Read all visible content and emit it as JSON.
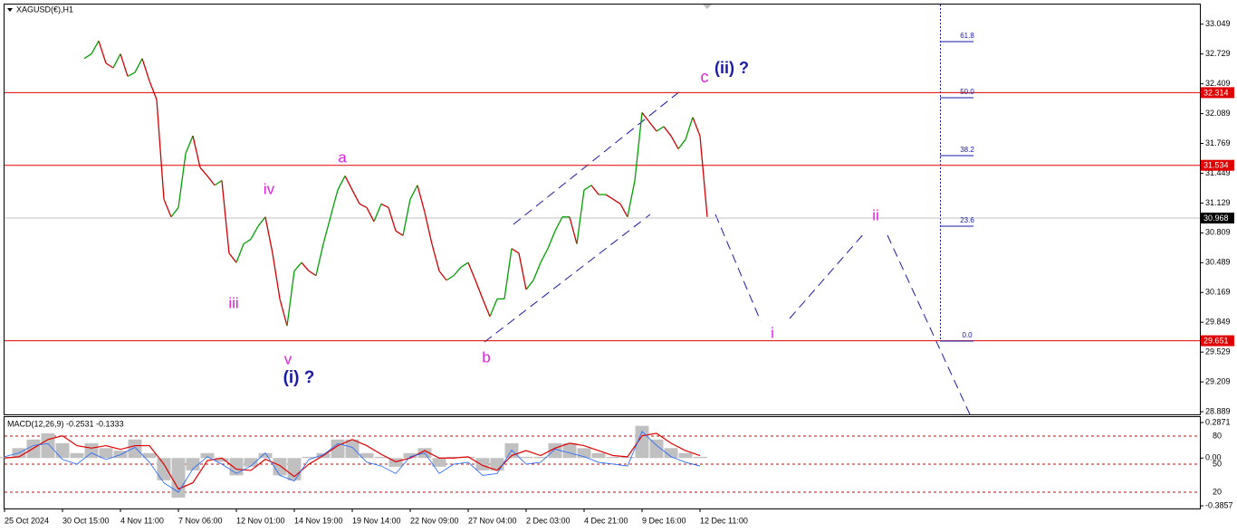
{
  "chart_data": [
    {
      "type": "line",
      "title": "XAGUSD(€),H1",
      "up_color": "#00a000",
      "down_color": "#d00000",
      "categories": [
        "25 Oct 2024",
        null,
        null,
        null,
        null,
        null,
        null,
        null,
        "30 Oct 15:00",
        null,
        null,
        null,
        null,
        null,
        null,
        null,
        "4 Nov 11:00",
        null,
        null,
        null,
        null,
        null,
        null,
        null,
        "7 Nov 06:00",
        null,
        null,
        null,
        null,
        null,
        null,
        null,
        "12 Nov 01:00",
        null,
        null,
        null,
        null,
        null,
        null,
        null,
        "14 Nov 19:00",
        null,
        null,
        null,
        null,
        null,
        null,
        null,
        "19 Nov 14:00",
        null,
        null,
        null,
        null,
        null,
        null,
        null,
        "22 Nov 09:00",
        null,
        null,
        null,
        null,
        null,
        null,
        null,
        "27 Nov 04:00",
        null,
        null,
        null,
        null,
        null,
        null,
        null,
        "2 Dec 03:00",
        null,
        null,
        null,
        null,
        null,
        null,
        null,
        "4 Dec 21:00",
        null,
        null,
        null,
        null,
        null,
        null,
        null,
        "9 Dec 16:00",
        null,
        null,
        null,
        null,
        null,
        null,
        null,
        "12 Dec 11:00",
        null,
        null,
        null,
        null,
        null,
        null,
        null,
        null,
        null,
        null,
        null,
        null,
        null,
        null,
        null,
        null,
        null,
        null,
        null,
        null,
        null,
        null,
        null,
        null,
        null,
        null,
        null,
        null,
        null,
        null,
        null,
        null,
        null,
        null,
        null,
        null,
        null,
        null,
        null,
        null,
        null,
        null,
        null,
        null,
        null,
        null,
        null,
        null,
        null,
        null,
        null,
        null,
        null,
        null,
        null,
        null,
        null,
        null,
        null,
        null,
        null,
        null,
        null,
        null,
        null,
        null,
        null,
        null
      ],
      "values": [
        null,
        null,
        null,
        null,
        null,
        null,
        null,
        null,
        null,
        null,
        null,
        32.68,
        32.73,
        32.87,
        32.63,
        32.58,
        32.73,
        32.49,
        32.53,
        32.68,
        32.44,
        32.24,
        31.17,
        30.98,
        31.08,
        31.66,
        31.85,
        31.51,
        31.42,
        31.32,
        31.37,
        30.59,
        30.49,
        30.69,
        30.74,
        30.88,
        30.98,
        30.59,
        30.1,
        29.81,
        30.4,
        30.49,
        30.4,
        30.35,
        30.69,
        30.98,
        31.27,
        31.42,
        31.27,
        31.12,
        31.08,
        30.93,
        31.12,
        31.08,
        30.83,
        30.78,
        31.17,
        31.32,
        31.03,
        30.69,
        30.4,
        30.3,
        30.35,
        30.44,
        30.49,
        30.3,
        30.1,
        29.91,
        30.1,
        30.1,
        30.64,
        30.59,
        30.2,
        30.3,
        30.49,
        30.64,
        30.83,
        30.98,
        30.98,
        30.69,
        31.27,
        31.32,
        31.22,
        31.22,
        31.17,
        31.12,
        30.98,
        31.37,
        32.1,
        32.0,
        31.9,
        31.95,
        31.85,
        31.71,
        31.81,
        32.05,
        31.85,
        30.98,
        null,
        null,
        null,
        null,
        null,
        null,
        null,
        null,
        null,
        null,
        null,
        null,
        null,
        null,
        null,
        null,
        null,
        null,
        null,
        null,
        null,
        null,
        null,
        null,
        null,
        null,
        null,
        null,
        null,
        null,
        null,
        null,
        null,
        null,
        null,
        null,
        null,
        null,
        null,
        null,
        null,
        null,
        null,
        null,
        null,
        null,
        null,
        null,
        null,
        null,
        null,
        null,
        null,
        null,
        null,
        null,
        null,
        null,
        null,
        null,
        null,
        null,
        null,
        null,
        null,
        null,
        null
      ],
      "ylim": [
        28.87,
        33.26
      ],
      "yticks": [
        33.049,
        32.729,
        32.409,
        32.089,
        31.769,
        31.449,
        31.129,
        30.809,
        30.489,
        30.169,
        29.849,
        29.529,
        29.209,
        28.889
      ],
      "hlines": [
        {
          "value": 32.314,
          "color": "#e00000"
        },
        {
          "value": 31.534,
          "color": "#e00000"
        },
        {
          "value": 30.968,
          "color": "#c0c0c0",
          "label_color": "#000000"
        },
        {
          "value": 29.651,
          "color": "#e00000"
        }
      ],
      "fib_levels": [
        "61.8",
        "50.0",
        "38.2",
        "23.6",
        "0.0"
      ],
      "annotations": [
        {
          "text": "(ii) ?",
          "color": "#1a1aa6"
        },
        {
          "text": "c",
          "color": "#e020e0"
        },
        {
          "text": "a",
          "color": "#e020e0"
        },
        {
          "text": "iv",
          "color": "#e020e0"
        },
        {
          "text": "iii",
          "color": "#e020e0"
        },
        {
          "text": "v",
          "color": "#e020e0"
        },
        {
          "text": "(i) ?",
          "color": "#1a1aa6"
        },
        {
          "text": "b",
          "color": "#e020e0"
        },
        {
          "text": "i",
          "color": "#e020e0"
        },
        {
          "text": "ii",
          "color": "#e020e0"
        }
      ]
    },
    {
      "type": "macd",
      "title": "MACD(12,26,9) -0.2531 -0.1333",
      "categories": [
        null,
        null,
        null,
        null,
        null,
        null,
        null,
        null,
        null,
        null,
        null,
        null,
        null,
        null,
        null,
        null,
        null,
        null,
        null,
        null,
        null,
        null,
        null,
        null,
        null,
        null,
        null,
        null,
        null,
        null,
        null,
        null,
        null,
        null,
        null,
        null,
        null,
        null,
        null,
        null,
        null,
        null,
        null,
        null,
        null,
        null,
        null,
        null,
        null,
        null,
        null,
        null,
        null,
        null,
        null,
        null,
        null,
        null,
        null,
        null,
        null,
        null,
        null,
        null,
        null,
        null,
        null,
        null,
        null,
        null,
        null,
        null,
        null,
        null,
        null,
        null,
        null,
        null,
        null,
        null,
        null,
        null,
        null
      ],
      "series": [
        {
          "type": "bar",
          "color": "#c0c0c0",
          "values": [
            0.01,
            0.08,
            0.15,
            0.2,
            0.12,
            0.04,
            0.12,
            0.08,
            0.06,
            0.15,
            0.04,
            -0.18,
            -0.32,
            -0.1,
            0.04,
            -0.03,
            -0.14,
            -0.07,
            0.04,
            -0.14,
            -0.18,
            0.01,
            0.04,
            0.15,
            0.15,
            0.04,
            0.01,
            -0.07,
            0.04,
            0.08,
            -0.07,
            0.01,
            0.01,
            -0.1,
            -0.1,
            0.12,
            0.01,
            0.01,
            0.12,
            0.12,
            0.08,
            0.04,
            0.01,
            0.01,
            0.26,
            0.15,
            0.08,
            0.04,
            0.01,
            null,
            null,
            null,
            null,
            null,
            null,
            null,
            null,
            null,
            null,
            null,
            null,
            null,
            null,
            null,
            null,
            null,
            null,
            null,
            null,
            null,
            null,
            null,
            null,
            null,
            null,
            null,
            null,
            null,
            null,
            null,
            null,
            null,
            null
          ]
        },
        {
          "type": "line",
          "color": "#e00000",
          "values": [
            0.0,
            0.01,
            0.08,
            0.15,
            0.18,
            0.1,
            0.08,
            0.1,
            0.07,
            0.1,
            0.1,
            -0.05,
            -0.25,
            -0.2,
            -0.02,
            0.0,
            -0.09,
            -0.1,
            -0.01,
            -0.06,
            -0.15,
            -0.05,
            0.02,
            0.1,
            0.15,
            0.1,
            0.03,
            -0.03,
            0.0,
            0.06,
            0.0,
            0.0,
            0.01,
            -0.06,
            -0.1,
            0.02,
            0.06,
            0.02,
            0.08,
            0.12,
            0.1,
            0.06,
            0.02,
            0.01,
            0.18,
            0.2,
            0.12,
            0.06,
            0.02,
            null,
            null,
            null,
            null,
            null,
            null,
            null,
            null,
            null,
            null,
            null,
            null,
            null,
            null,
            null,
            null,
            null,
            null,
            null,
            null,
            null,
            null,
            null,
            null,
            null,
            null,
            null,
            null,
            null,
            null,
            null,
            null,
            null,
            null
          ]
        },
        {
          "type": "line",
          "axis": "y2",
          "color": "#1e64ff",
          "values": [
            58,
            62,
            70,
            72,
            55,
            50,
            62,
            55,
            60,
            68,
            52,
            30,
            20,
            45,
            58,
            50,
            40,
            48,
            62,
            38,
            32,
            55,
            60,
            72,
            68,
            52,
            48,
            40,
            58,
            62,
            40,
            50,
            52,
            38,
            40,
            65,
            50,
            52,
            66,
            62,
            58,
            52,
            50,
            48,
            85,
            70,
            58,
            52,
            48,
            null,
            null,
            null,
            null,
            null,
            null,
            null,
            null,
            null,
            null,
            null,
            null,
            null,
            null,
            null,
            null,
            null,
            null,
            null,
            null,
            null,
            null,
            null,
            null,
            null,
            null,
            null,
            null,
            null,
            null,
            null,
            null,
            null,
            null
          ]
        }
      ],
      "ylim": [
        -0.3857,
        0.2871
      ],
      "yticks": [
        0.2871,
        {
          "value": 0,
          "label": "0.00"
        },
        -0.3857
      ],
      "y2lim": [
        5.5,
        94.5
      ],
      "y2ticks": [
        20,
        50,
        80
      ],
      "y2grid_color": "#e00000"
    }
  ]
}
